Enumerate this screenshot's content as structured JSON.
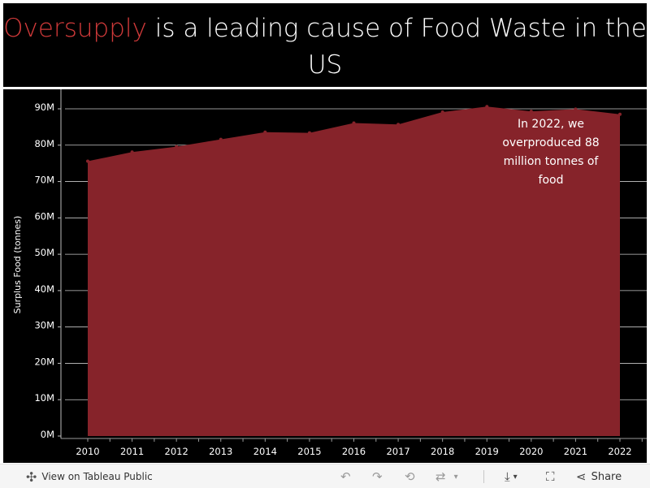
{
  "title": {
    "accent": "Oversupply",
    "rest": "is a leading cause of Food Waste in the US"
  },
  "colors": {
    "background": "#000000",
    "area_fill": "#86232a",
    "title_accent": "#d13a3a",
    "text": "#ffffff"
  },
  "chart_data": {
    "type": "area",
    "title": "Oversupply is a leading cause of Food Waste in the US",
    "xlabel": "",
    "ylabel": "Surplus Food (tonnes)",
    "x": [
      "2010",
      "2011",
      "2012",
      "2013",
      "2014",
      "2015",
      "2016",
      "2017",
      "2018",
      "2019",
      "2020",
      "2021",
      "2022"
    ],
    "values": [
      75.6,
      78.1,
      79.6,
      81.6,
      83.6,
      83.4,
      86.1,
      85.7,
      89.1,
      90.6,
      89.3,
      89.9,
      88.5
    ],
    "value_units": "million tonnes",
    "ylim": [
      0,
      90
    ],
    "yticks": [
      0,
      10,
      20,
      30,
      40,
      50,
      60,
      70,
      80,
      90
    ],
    "ytick_labels": [
      "0M",
      "10M",
      "20M",
      "30M",
      "40M",
      "50M",
      "60M",
      "70M",
      "80M",
      "90M"
    ],
    "grid": "horizontal",
    "annotation": "In 2022, we overproduced 88 million tonnes of food"
  },
  "footer": {
    "view_label": "View on Tableau Public",
    "share_label": "Share",
    "icons": [
      "tableau-icon",
      "undo-icon",
      "redo-icon",
      "revert-icon",
      "refresh-icon",
      "download-icon",
      "fullscreen-icon",
      "share-icon"
    ]
  }
}
